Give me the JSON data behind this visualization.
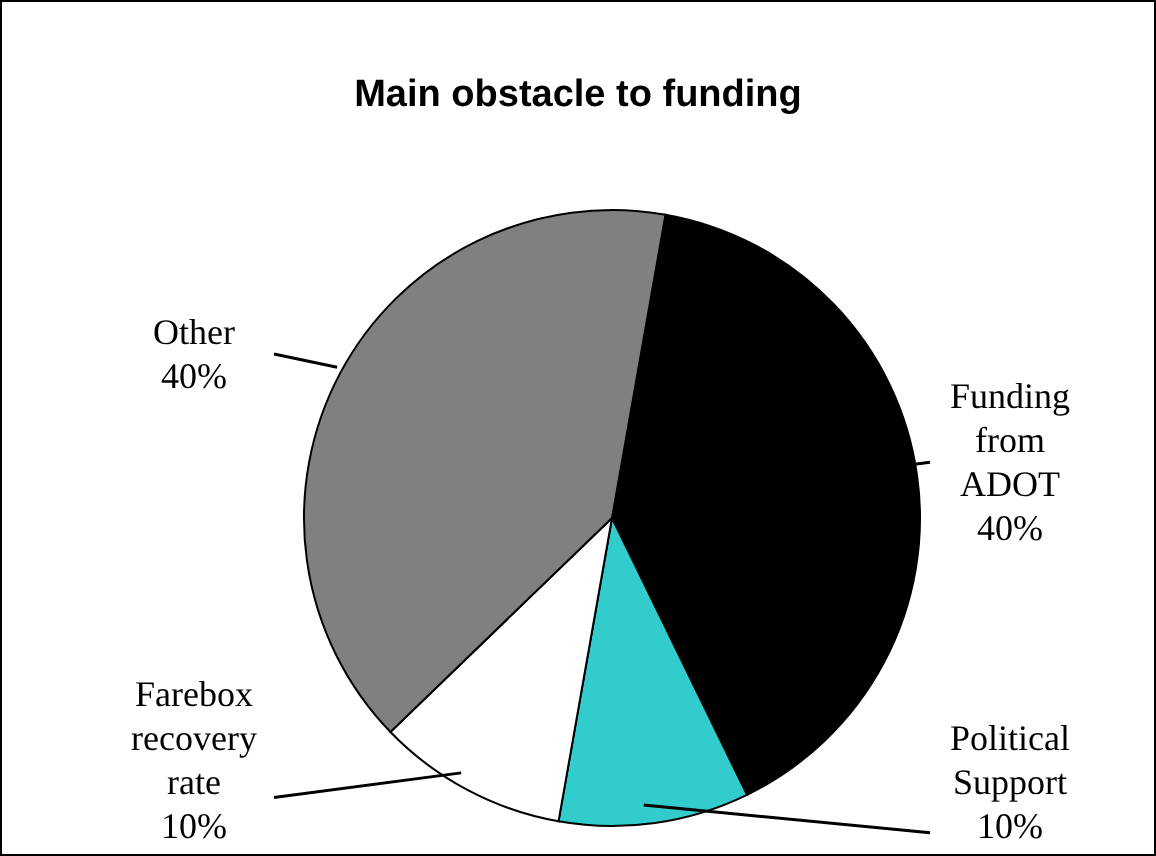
{
  "chart_data": {
    "type": "pie",
    "title": "Main obstacle to funding",
    "categories": [
      "Funding from ADOT",
      "Political Support",
      "Farebox recovery rate",
      "Other"
    ],
    "values": [
      40,
      10,
      10,
      40
    ],
    "value_labels": [
      "40%",
      "10%",
      "10%",
      "40%"
    ],
    "colors": [
      "#000000",
      "#33cccc",
      "#ffffff",
      "#808080"
    ],
    "legend": false
  }
}
